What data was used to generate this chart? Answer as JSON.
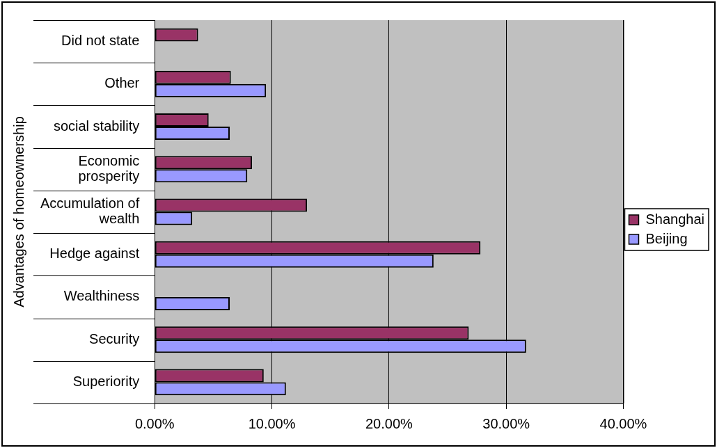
{
  "chart_data": {
    "type": "bar",
    "orientation": "horizontal",
    "ylabel": "Advantages of homeownership",
    "categories": [
      "Did not state",
      "Other",
      "social stability",
      "Economic prosperity",
      "Accumulation of wealth",
      "Hedge against",
      "Wealthiness",
      "Security",
      "Superiority"
    ],
    "series": [
      {
        "name": "Shanghai",
        "color": "#993366",
        "values": [
          3.7,
          6.5,
          4.6,
          8.3,
          13.0,
          27.8,
          null,
          26.8,
          9.3
        ]
      },
      {
        "name": "Beijing",
        "color": "#9999ff",
        "values": [
          null,
          9.5,
          6.4,
          7.9,
          3.2,
          23.8,
          6.4,
          31.7,
          11.2
        ]
      }
    ],
    "xlim": [
      0,
      40
    ],
    "xticks": [
      {
        "value": 0,
        "label": "0.00%"
      },
      {
        "value": 10,
        "label": "10.00%"
      },
      {
        "value": 20,
        "label": "20.00%"
      },
      {
        "value": 30,
        "label": "30.00%"
      },
      {
        "value": 40,
        "label": "40.00%"
      }
    ],
    "grid": "x",
    "legend": "right"
  }
}
